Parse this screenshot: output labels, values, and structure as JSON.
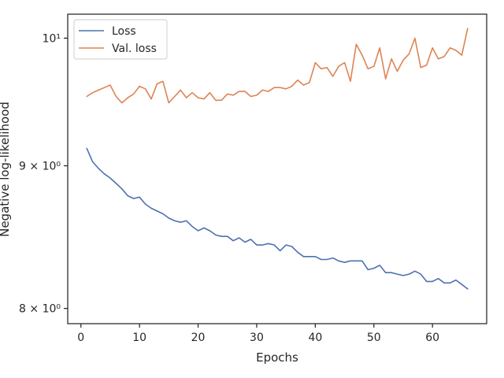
{
  "chart_data": {
    "type": "line",
    "xlabel": "Epochs",
    "ylabel": "Negative log-likelihood",
    "yscale": "log",
    "xlim": [
      -2.25,
      69.25
    ],
    "ylim": [
      7.9,
      10.2
    ],
    "xticks": [
      0,
      10,
      20,
      30,
      40,
      50,
      60
    ],
    "yticks": [
      {
        "value": 8,
        "label": "8 × 10⁰"
      },
      {
        "value": 9,
        "label": "9 × 10⁰"
      },
      {
        "value": 10,
        "label": "10¹"
      }
    ],
    "grid": false,
    "legend_position": "top-left",
    "x": [
      1,
      2,
      3,
      4,
      5,
      6,
      7,
      8,
      9,
      10,
      11,
      12,
      13,
      14,
      15,
      16,
      17,
      18,
      19,
      20,
      21,
      22,
      23,
      24,
      25,
      26,
      27,
      28,
      29,
      30,
      31,
      32,
      33,
      34,
      35,
      36,
      37,
      38,
      39,
      40,
      41,
      42,
      43,
      44,
      45,
      46,
      47,
      48,
      49,
      50,
      51,
      52,
      53,
      54,
      55,
      56,
      57,
      58,
      59,
      60,
      61,
      62,
      63,
      64,
      65,
      66
    ],
    "series": [
      {
        "name": "Loss",
        "color": "#4c72b0",
        "values": [
          9.13,
          9.03,
          8.98,
          8.94,
          8.91,
          8.87,
          8.83,
          8.78,
          8.76,
          8.77,
          8.72,
          8.69,
          8.67,
          8.65,
          8.62,
          8.6,
          8.59,
          8.6,
          8.56,
          8.53,
          8.55,
          8.53,
          8.5,
          8.49,
          8.49,
          8.46,
          8.48,
          8.45,
          8.47,
          8.43,
          8.43,
          8.44,
          8.43,
          8.39,
          8.43,
          8.42,
          8.38,
          8.35,
          8.35,
          8.35,
          8.33,
          8.33,
          8.34,
          8.32,
          8.31,
          8.32,
          8.32,
          8.32,
          8.26,
          8.27,
          8.29,
          8.24,
          8.24,
          8.23,
          8.22,
          8.23,
          8.25,
          8.23,
          8.18,
          8.18,
          8.2,
          8.17,
          8.17,
          8.19,
          8.16,
          8.13
        ]
      },
      {
        "name": "Val. loss",
        "color": "#dd8452",
        "values": [
          9.53,
          9.56,
          9.58,
          9.6,
          9.62,
          9.53,
          9.48,
          9.52,
          9.55,
          9.61,
          9.59,
          9.51,
          9.63,
          9.65,
          9.48,
          9.53,
          9.58,
          9.52,
          9.56,
          9.52,
          9.51,
          9.56,
          9.5,
          9.5,
          9.55,
          9.54,
          9.57,
          9.57,
          9.53,
          9.54,
          9.58,
          9.57,
          9.6,
          9.6,
          9.59,
          9.61,
          9.66,
          9.62,
          9.64,
          9.8,
          9.75,
          9.76,
          9.69,
          9.77,
          9.8,
          9.65,
          9.95,
          9.86,
          9.75,
          9.77,
          9.92,
          9.67,
          9.83,
          9.73,
          9.82,
          9.87,
          10.0,
          9.76,
          9.78,
          9.92,
          9.83,
          9.85,
          9.92,
          9.9,
          9.86,
          10.08
        ]
      }
    ]
  }
}
